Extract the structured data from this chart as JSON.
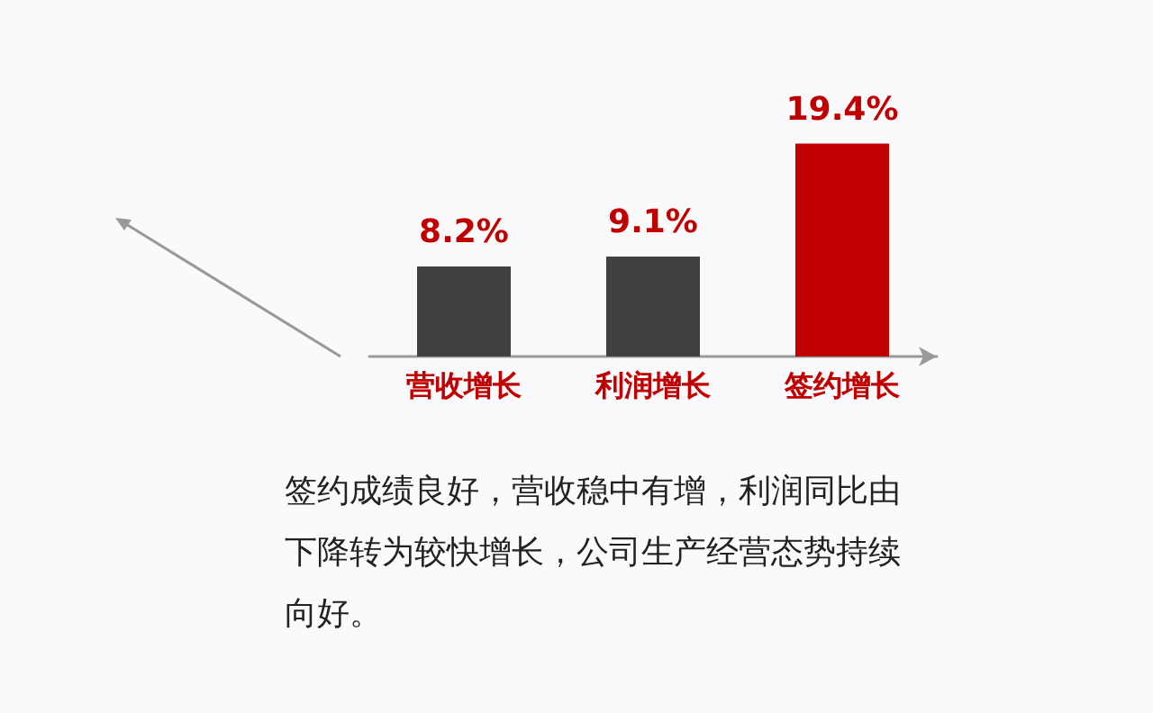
{
  "chart_data": {
    "type": "bar",
    "categories": [
      "营收增长",
      "利润增长",
      "签约增长"
    ],
    "values": [
      8.2,
      9.1,
      19.4
    ],
    "colors": [
      "#404040",
      "#404040",
      "#c00000"
    ],
    "value_labels": [
      "8.2%",
      "9.1%",
      "19.4%"
    ],
    "annotations": [
      "签约成绩良好，营收稳中有增，利润同比由下降转为较快增长，公司生产经营态势持续向好。"
    ]
  }
}
